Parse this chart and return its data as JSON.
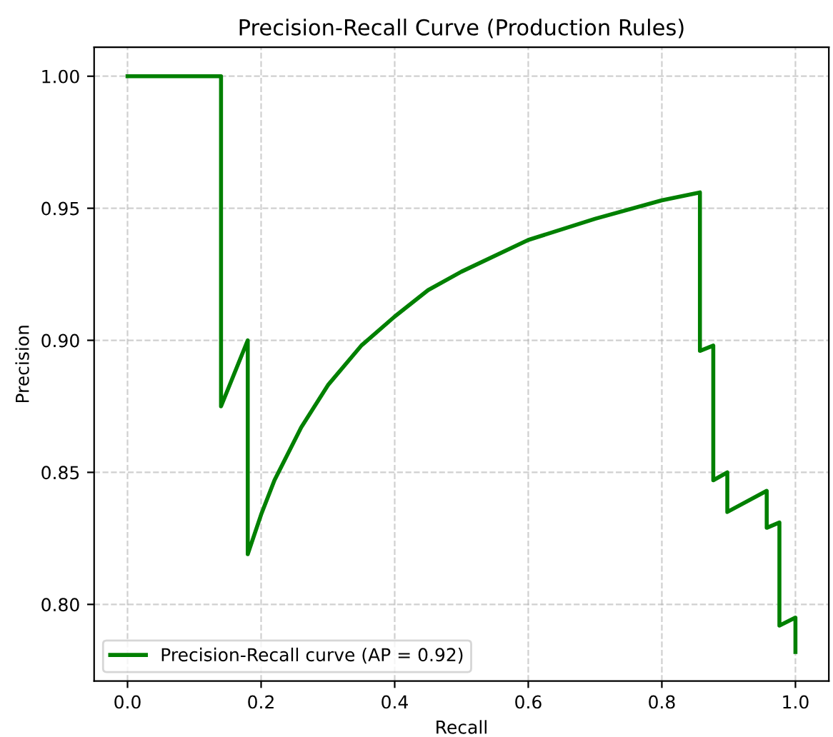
{
  "chart_data": {
    "type": "line",
    "title": "Precision-Recall Curve (Production Rules)",
    "xlabel": "Recall",
    "ylabel": "Precision",
    "series": [
      {
        "name": "Precision-Recall curve (AP = 0.92)",
        "color": "#008000",
        "x": [
          0.0,
          0.14,
          0.14,
          0.18,
          0.18,
          0.2,
          0.22,
          0.26,
          0.3,
          0.35,
          0.4,
          0.45,
          0.5,
          0.6,
          0.7,
          0.8,
          0.857,
          0.857,
          0.877,
          0.877,
          0.898,
          0.898,
          0.957,
          0.957,
          0.976,
          0.976,
          1.0,
          1.0
        ],
        "values": [
          1.0,
          1.0,
          0.875,
          0.9,
          0.819,
          0.834,
          0.847,
          0.867,
          0.883,
          0.898,
          0.909,
          0.919,
          0.926,
          0.938,
          0.946,
          0.953,
          0.956,
          0.896,
          0.898,
          0.847,
          0.85,
          0.835,
          0.843,
          0.829,
          0.831,
          0.792,
          0.795,
          0.782
        ]
      }
    ],
    "xlim": [
      -0.05,
      1.05
    ],
    "ylim": [
      0.771,
      1.011
    ],
    "xticks": [
      {
        "value": 0.0,
        "label": "0.0"
      },
      0.2,
      0.4,
      0.6,
      0.8,
      {
        "value": 1.0,
        "label": "1.0"
      }
    ],
    "yticks": [
      {
        "value": 0.8,
        "label": "0.80"
      },
      0.85,
      {
        "value": 0.9,
        "label": "0.90"
      },
      0.95,
      {
        "value": 1.0,
        "label": "1.00"
      }
    ],
    "grid": true,
    "legend": "bottom left",
    "line_style": "solid",
    "marker": "none"
  }
}
